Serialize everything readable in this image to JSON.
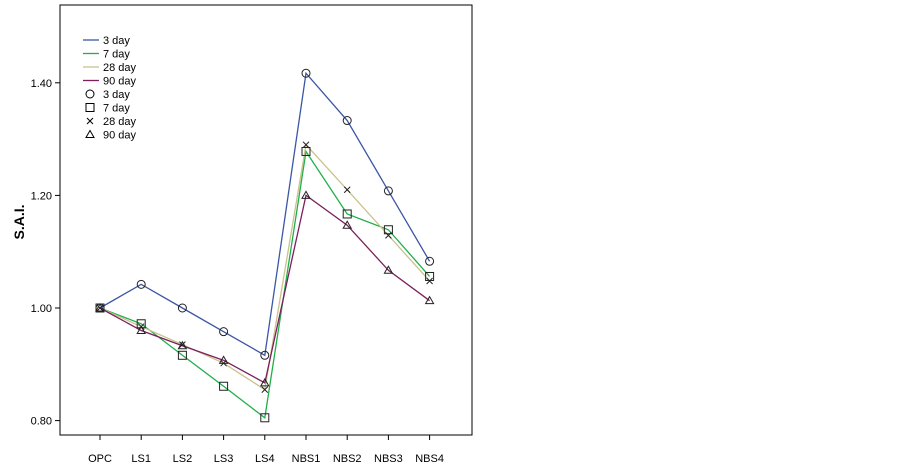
{
  "chart_data": {
    "type": "line",
    "title": "",
    "xlabel": "",
    "ylabel": "S.A.I.",
    "ylim": [
      0.78,
      1.55
    ],
    "yticks": [
      0.8,
      1.0,
      1.2,
      1.4
    ],
    "ytick_labels": [
      "0.80",
      "1.00",
      "1.20",
      "1.40"
    ],
    "grid": false,
    "legend_placement": "top-left",
    "categories": [
      "OPC",
      "LS1",
      "LS2",
      "LS3",
      "LS4",
      "NBS1",
      "NBS2",
      "NBS3",
      "NBS4"
    ],
    "series": [
      {
        "name": "3 day",
        "marker_label": "3 day",
        "color": "#3b56a6",
        "marker": "circle",
        "values": [
          1.0,
          1.042,
          1.0,
          0.958,
          0.916,
          1.417,
          1.333,
          1.208,
          1.083
        ]
      },
      {
        "name": "7 day",
        "marker_label": "7 day",
        "color": "#1fb04a",
        "marker": "square",
        "values": [
          1.0,
          0.972,
          0.916,
          0.861,
          0.805,
          1.278,
          1.167,
          1.139,
          1.056
        ]
      },
      {
        "name": "28 day",
        "marker_label": "28 day",
        "color": "#c9c28e",
        "marker": "x",
        "values": [
          1.0,
          0.967,
          0.935,
          0.902,
          0.855,
          1.29,
          1.21,
          1.129,
          1.048
        ]
      },
      {
        "name": "90 day",
        "marker_label": "90 day",
        "color": "#7b1f5e",
        "marker": "triangle",
        "values": [
          1.0,
          0.96,
          0.933,
          0.907,
          0.867,
          1.2,
          1.147,
          1.067,
          1.013
        ]
      }
    ]
  }
}
